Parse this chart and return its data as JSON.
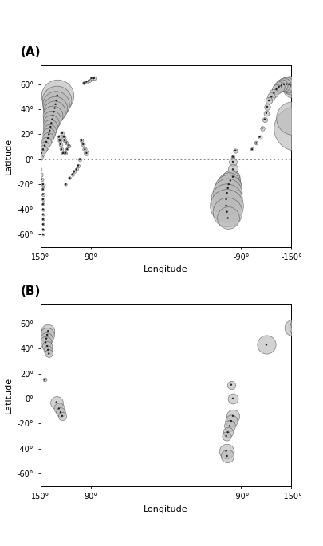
{
  "panel_A_label": "(A)",
  "panel_B_label": "(B)",
  "xlim_left": 80,
  "xlim_right": -70,
  "ylim_bottom": -70,
  "ylim_top": 75,
  "xticks": [
    90,
    150,
    -150,
    -90
  ],
  "yticks": [
    -60,
    -40,
    -20,
    0,
    20,
    40,
    60
  ],
  "xlabel": "Longitude",
  "ylabel": "Latitude",
  "equator_color": "#888888",
  "bg_color": "#ffffff",
  "circle_facecolor": "#bbbbbb",
  "circle_edgecolor": "#444444",
  "circle_lw": 0.5,
  "circle_alpha": 0.65,
  "coast_color": "#777777",
  "coast_lw": 0.45,
  "panel_A_circles": [
    {
      "lon": 130,
      "lat": 51,
      "size": 850
    },
    {
      "lon": 131,
      "lat": 47,
      "size": 700
    },
    {
      "lon": 132,
      "lat": 44,
      "size": 580
    },
    {
      "lon": 133,
      "lat": 41,
      "size": 480
    },
    {
      "lon": 134,
      "lat": 38,
      "size": 380
    },
    {
      "lon": 135,
      "lat": 35,
      "size": 320
    },
    {
      "lon": 136,
      "lat": 32,
      "size": 260
    },
    {
      "lon": 137,
      "lat": 29,
      "size": 200
    },
    {
      "lon": 138,
      "lat": 26,
      "size": 170
    },
    {
      "lon": 139,
      "lat": 23,
      "size": 140
    },
    {
      "lon": 140,
      "lat": 20,
      "size": 120
    },
    {
      "lon": 141,
      "lat": 17,
      "size": 100
    },
    {
      "lon": 143,
      "lat": 14,
      "size": 80
    },
    {
      "lon": 145,
      "lat": 11,
      "size": 65
    },
    {
      "lon": 147,
      "lat": 8,
      "size": 50
    },
    {
      "lon": 149,
      "lat": 5,
      "size": 40
    },
    {
      "lon": 151,
      "lat": 2,
      "size": 30
    },
    {
      "lon": 153,
      "lat": -1,
      "size": 25
    },
    {
      "lon": 153,
      "lat": -5,
      "size": 20
    },
    {
      "lon": 152,
      "lat": -8,
      "size": 18
    },
    {
      "lon": 150,
      "lat": -12,
      "size": 15
    },
    {
      "lon": 149,
      "lat": -16,
      "size": 13
    },
    {
      "lon": 147,
      "lat": -20,
      "size": 12
    },
    {
      "lon": 147,
      "lat": -24,
      "size": 10
    },
    {
      "lon": 147,
      "lat": -28,
      "size": 9
    },
    {
      "lon": 147,
      "lat": -32,
      "size": 8
    },
    {
      "lon": 147,
      "lat": -36,
      "size": 7
    },
    {
      "lon": 147,
      "lat": -40,
      "size": 6
    },
    {
      "lon": 147,
      "lat": -44,
      "size": 5
    },
    {
      "lon": 147,
      "lat": -48,
      "size": 5
    },
    {
      "lon": 147,
      "lat": -52,
      "size": 4
    },
    {
      "lon": 147,
      "lat": -56,
      "size": 4
    },
    {
      "lon": 147,
      "lat": -60,
      "size": 4
    },
    {
      "lon": -155,
      "lat": 25,
      "size": 1600
    },
    {
      "lon": -152,
      "lat": 33,
      "size": 900
    },
    {
      "lon": -152,
      "lat": 57,
      "size": 330
    },
    {
      "lon": -150,
      "lat": 59,
      "size": 280
    },
    {
      "lon": -147,
      "lat": 60,
      "size": 230
    },
    {
      "lon": -144,
      "lat": 60,
      "size": 190
    },
    {
      "lon": -141,
      "lat": 60,
      "size": 150
    },
    {
      "lon": -138,
      "lat": 59,
      "size": 120
    },
    {
      "lon": -135,
      "lat": 58,
      "size": 95
    },
    {
      "lon": -132,
      "lat": 56,
      "size": 75
    },
    {
      "lon": -129,
      "lat": 53,
      "size": 60
    },
    {
      "lon": -126,
      "lat": 50,
      "size": 48
    },
    {
      "lon": -123,
      "lat": 47,
      "size": 38
    },
    {
      "lon": -121,
      "lat": 42,
      "size": 30
    },
    {
      "lon": -120,
      "lat": 37,
      "size": 25
    },
    {
      "lon": -118,
      "lat": 32,
      "size": 20
    },
    {
      "lon": -115,
      "lat": 25,
      "size": 16
    },
    {
      "lon": -112,
      "lat": 18,
      "size": 13
    },
    {
      "lon": -108,
      "lat": 13,
      "size": 11
    },
    {
      "lon": -103,
      "lat": 8,
      "size": 9
    },
    {
      "lon": -83,
      "lat": 7,
      "size": 15
    },
    {
      "lon": -80,
      "lat": 2,
      "size": 12
    },
    {
      "lon": -80,
      "lat": -2,
      "size": 50
    },
    {
      "lon": -80,
      "lat": -8,
      "size": 80
    },
    {
      "lon": -80,
      "lat": -14,
      "size": 150
    },
    {
      "lon": -77,
      "lat": -17,
      "size": 300
    },
    {
      "lon": -75,
      "lat": -20,
      "size": 450
    },
    {
      "lon": -74,
      "lat": -23,
      "size": 600
    },
    {
      "lon": -73,
      "lat": -27,
      "size": 700
    },
    {
      "lon": -72,
      "lat": -32,
      "size": 800
    },
    {
      "lon": -72,
      "lat": -37,
      "size": 900
    },
    {
      "lon": -73,
      "lat": -42,
      "size": 700
    },
    {
      "lon": -74,
      "lat": -47,
      "size": 400
    },
    {
      "lon": 95,
      "lat": 5,
      "size": 18
    },
    {
      "lon": 97,
      "lat": 8,
      "size": 15
    },
    {
      "lon": 99,
      "lat": 12,
      "size": 13
    },
    {
      "lon": 101,
      "lat": 15,
      "size": 11
    },
    {
      "lon": 103,
      "lat": 0,
      "size": 10
    },
    {
      "lon": 105,
      "lat": -5,
      "size": 9
    },
    {
      "lon": 107,
      "lat": -8,
      "size": 8
    },
    {
      "lon": 110,
      "lat": -10,
      "size": 8
    },
    {
      "lon": 112,
      "lat": -12,
      "size": 7
    },
    {
      "lon": 115,
      "lat": -15,
      "size": 7
    },
    {
      "lon": 120,
      "lat": -20,
      "size": 6
    },
    {
      "lon": 123,
      "lat": 5,
      "size": 9
    },
    {
      "lon": 125,
      "lat": 8,
      "size": 11
    },
    {
      "lon": 126,
      "lat": 12,
      "size": 12
    },
    {
      "lon": 127,
      "lat": 15,
      "size": 14
    },
    {
      "lon": 128,
      "lat": 18,
      "size": 16
    },
    {
      "lon": -170,
      "lat": -15,
      "size": 9
    },
    {
      "lon": -167,
      "lat": -18,
      "size": 8
    },
    {
      "lon": -163,
      "lat": -22,
      "size": 7
    },
    {
      "lon": -162,
      "lat": -25,
      "size": 7
    },
    {
      "lon": -165,
      "lat": 0,
      "size": 7
    },
    {
      "lon": -168,
      "lat": 5,
      "size": 7
    },
    {
      "lon": 162,
      "lat": 60,
      "size": 70
    },
    {
      "lon": 165,
      "lat": 60,
      "size": 58
    },
    {
      "lon": 168,
      "lat": 60,
      "size": 46
    },
    {
      "lon": 171,
      "lat": 60,
      "size": 36
    },
    {
      "lon": 174,
      "lat": 60,
      "size": 27
    },
    {
      "lon": 177,
      "lat": 60,
      "size": 20
    },
    {
      "lon": 180,
      "lat": 60,
      "size": 15
    },
    {
      "lon": 86,
      "lat": 65,
      "size": 12
    },
    {
      "lon": 89,
      "lat": 65,
      "size": 10
    },
    {
      "lon": 92,
      "lat": 63,
      "size": 9
    },
    {
      "lon": 95,
      "lat": 62,
      "size": 8
    },
    {
      "lon": 98,
      "lat": 61,
      "size": 7
    },
    {
      "lon": 120,
      "lat": 5,
      "size": 9
    },
    {
      "lon": 118,
      "lat": 8,
      "size": 10
    },
    {
      "lon": 116,
      "lat": 11,
      "size": 10
    },
    {
      "lon": 119,
      "lat": 13,
      "size": 11
    },
    {
      "lon": 121,
      "lat": 15,
      "size": 12
    },
    {
      "lon": 122,
      "lat": 18,
      "size": 13
    },
    {
      "lon": 124,
      "lat": 21,
      "size": 14
    },
    {
      "lon": 156,
      "lat": -15,
      "size": 8
    },
    {
      "lon": 157,
      "lat": -18,
      "size": 7
    },
    {
      "lon": 158,
      "lat": -21,
      "size": 7
    },
    {
      "lon": 160,
      "lat": -24,
      "size": 6
    },
    {
      "lon": 162,
      "lat": -27,
      "size": 6
    },
    {
      "lon": -178,
      "lat": -18,
      "size": 8
    },
    {
      "lon": -177,
      "lat": -21,
      "size": 7
    },
    {
      "lon": -176,
      "lat": -15,
      "size": 7
    }
  ],
  "panel_B_circles": [
    {
      "lon": 141,
      "lat": 54,
      "size": 140
    },
    {
      "lon": 142,
      "lat": 51,
      "size": 170
    },
    {
      "lon": 143,
      "lat": 48,
      "size": 130
    },
    {
      "lon": 144,
      "lat": 45,
      "size": 110
    },
    {
      "lon": 142,
      "lat": 42,
      "size": 80
    },
    {
      "lon": 141,
      "lat": 39,
      "size": 60
    },
    {
      "lon": 140,
      "lat": 36,
      "size": 50
    },
    {
      "lon": 131,
      "lat": -3,
      "size": 130
    },
    {
      "lon": 128,
      "lat": -8,
      "size": 90
    },
    {
      "lon": 126,
      "lat": -11,
      "size": 70
    },
    {
      "lon": 124,
      "lat": -14,
      "size": 55
    },
    {
      "lon": -152,
      "lat": 57,
      "size": 220
    },
    {
      "lon": -156,
      "lat": 57,
      "size": 180
    },
    {
      "lon": -160,
      "lat": 60,
      "size": 280
    },
    {
      "lon": -163,
      "lat": 60,
      "size": 230
    },
    {
      "lon": -166,
      "lat": 60,
      "size": 190
    },
    {
      "lon": -120,
      "lat": 43,
      "size": 280
    },
    {
      "lon": -78,
      "lat": 11,
      "size": 55
    },
    {
      "lon": -80,
      "lat": 0,
      "size": 85
    },
    {
      "lon": -80,
      "lat": -14,
      "size": 140
    },
    {
      "lon": -78,
      "lat": -18,
      "size": 120
    },
    {
      "lon": -76,
      "lat": -22,
      "size": 100
    },
    {
      "lon": -74,
      "lat": -27,
      "size": 80
    },
    {
      "lon": -72,
      "lat": -30,
      "size": 65
    },
    {
      "lon": -72,
      "lat": -42,
      "size": 180
    },
    {
      "lon": -73,
      "lat": -46,
      "size": 140
    },
    {
      "lon": 145,
      "lat": 15,
      "size": 12
    }
  ]
}
